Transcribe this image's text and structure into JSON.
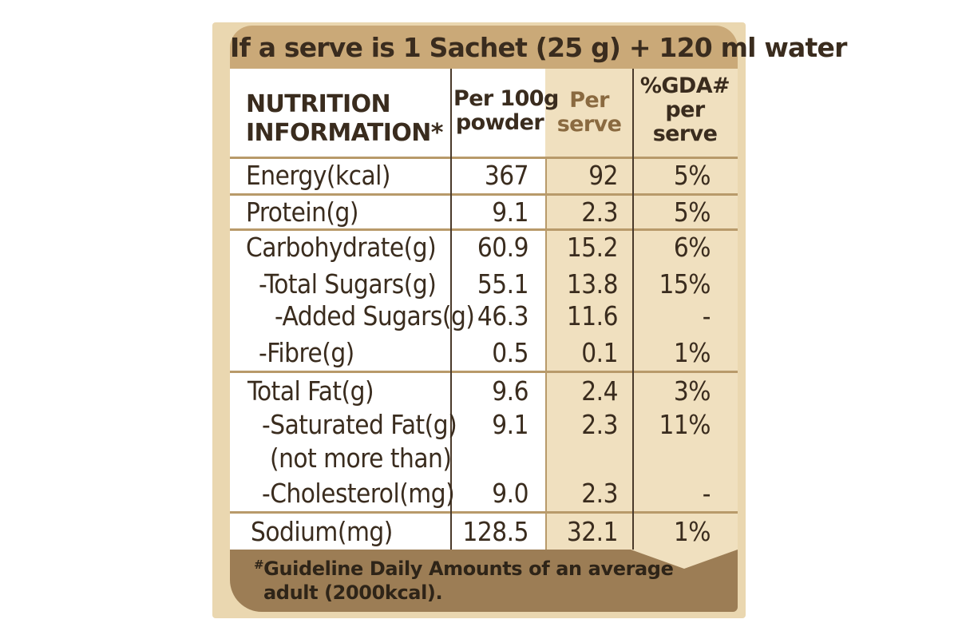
{
  "serve_line": "If a serve is 1 Sachet (25 g) + 120 ml water",
  "headers": {
    "nutrition": [
      "NUTRITION",
      "INFORMATION*"
    ],
    "per100g": [
      "Per 100g",
      "powder"
    ],
    "per_serve": [
      "Per",
      "serve"
    ],
    "gda": [
      "%GDA#",
      "per",
      "serve"
    ]
  },
  "rows": [
    {
      "label": "Energy(kcal)",
      "per100g": "367",
      "per_serve": "92",
      "gda": "5%"
    },
    {
      "label": "Protein(g)",
      "per100g": "9.1",
      "per_serve": "2.3",
      "gda": "5%"
    },
    {
      "label": "Carbohydrate(g)",
      "per100g": "60.9",
      "per_serve": "15.2",
      "gda": "6%"
    },
    {
      "label": "-Total Sugars(g)",
      "per100g": "55.1",
      "per_serve": "13.8",
      "gda": "15%"
    },
    {
      "label": "-Added Sugars(g)",
      "per100g": "46.3",
      "per_serve": "11.6",
      "gda": "-"
    },
    {
      "label": "-Fibre(g)",
      "per100g": "0.5",
      "per_serve": "0.1",
      "gda": "1%"
    },
    {
      "label": "Total Fat(g)",
      "per100g": "9.6",
      "per_serve": "2.4",
      "gda": "3%"
    },
    {
      "label": "-Saturated Fat(g)",
      "per100g": "9.1",
      "per_serve": "2.3",
      "gda": "11%"
    },
    {
      "label": "(not more than)",
      "per100g": "",
      "per_serve": "",
      "gda": ""
    },
    {
      "label": "-Cholesterol(mg)",
      "per100g": "9.0",
      "per_serve": "2.3",
      "gda": "-"
    },
    {
      "label": "Sodium(mg)",
      "per100g": "128.5",
      "per_serve": "32.1",
      "gda": "1%"
    }
  ],
  "footnote": {
    "mark": "#",
    "lines": [
      "Guideline Daily Amounts of an average",
      "adult (2000kcal)."
    ]
  },
  "colors": {
    "panel": "#ead7b0",
    "header_bar": "#caa978",
    "footer": "#9c7d55",
    "text": "#3a2c1e"
  }
}
